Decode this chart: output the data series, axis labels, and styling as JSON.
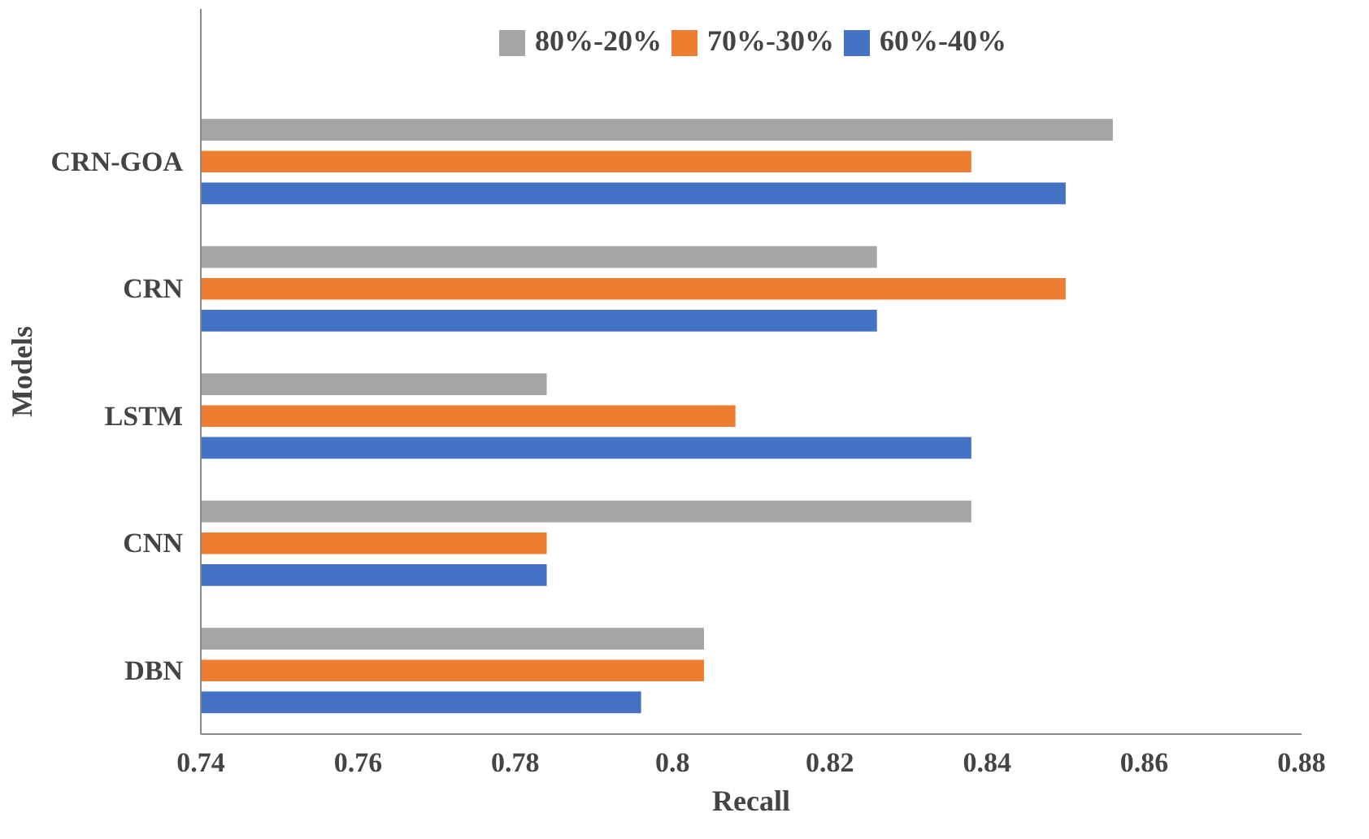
{
  "chart_data": {
    "type": "bar",
    "orientation": "horizontal",
    "xlabel": "Recall",
    "ylabel": "Models",
    "categories": [
      "CRN-GOA",
      "CRN",
      "LSTM",
      "CNN",
      "DBN"
    ],
    "series": [
      {
        "name": "80%-20%",
        "color": "#a5a5a5",
        "values": [
          0.856,
          0.826,
          0.784,
          0.838,
          0.804
        ]
      },
      {
        "name": "70%-30%",
        "color": "#ed7d31",
        "values": [
          0.838,
          0.85,
          0.808,
          0.784,
          0.804
        ]
      },
      {
        "name": "60%-40%",
        "color": "#4472c4",
        "values": [
          0.85,
          0.826,
          0.838,
          0.784,
          0.796
        ]
      }
    ],
    "xlim": [
      0.74,
      0.88
    ],
    "xticks": [
      0.74,
      0.76,
      0.78,
      0.8,
      0.82,
      0.84,
      0.86,
      0.88
    ],
    "grid": false,
    "legend": "top"
  }
}
